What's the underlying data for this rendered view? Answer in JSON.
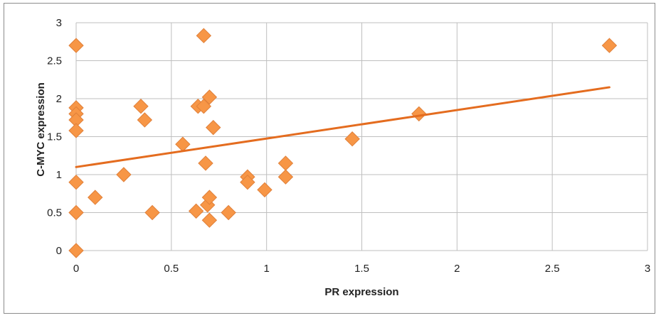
{
  "chart_data": {
    "type": "scatter",
    "xlabel": "PR expression",
    "ylabel": "C-MYC expression",
    "xlim": [
      0,
      3
    ],
    "ylim": [
      0,
      3
    ],
    "x_ticks": [
      "0",
      "0.5",
      "1",
      "1.5",
      "2",
      "2.5",
      "3"
    ],
    "y_ticks": [
      "0",
      "0.5",
      "1",
      "1.5",
      "2",
      "2.5",
      "3"
    ],
    "grid": true,
    "legend": "none",
    "marker": "diamond",
    "colors": {
      "marker": "#f79646",
      "marker_edge": "#e0803a",
      "trendline": "#e46c1f",
      "grid": "#bfbfbf"
    },
    "series": [
      {
        "points": [
          [
            0,
            2.7
          ],
          [
            0,
            1.88
          ],
          [
            0,
            1.8
          ],
          [
            0,
            1.72
          ],
          [
            0,
            1.58
          ],
          [
            0,
            0.9
          ],
          [
            0,
            0.5
          ],
          [
            0,
            0.0
          ],
          [
            0.1,
            0.7
          ],
          [
            0.25,
            1.0
          ],
          [
            0.34,
            1.9
          ],
          [
            0.36,
            1.72
          ],
          [
            0.4,
            0.5
          ],
          [
            0.56,
            1.4
          ],
          [
            0.63,
            0.52
          ],
          [
            0.64,
            1.9
          ],
          [
            0.67,
            2.83
          ],
          [
            0.67,
            1.9
          ],
          [
            0.68,
            1.15
          ],
          [
            0.69,
            0.6
          ],
          [
            0.7,
            0.7
          ],
          [
            0.7,
            0.4
          ],
          [
            0.7,
            2.02
          ],
          [
            0.72,
            1.62
          ],
          [
            0.8,
            0.5
          ],
          [
            0.9,
            0.97
          ],
          [
            0.9,
            0.9
          ],
          [
            0.99,
            0.8
          ],
          [
            1.1,
            1.15
          ],
          [
            1.1,
            0.97
          ],
          [
            1.45,
            1.47
          ],
          [
            1.8,
            1.8
          ],
          [
            2.8,
            2.7
          ]
        ]
      }
    ],
    "trendline": {
      "type": "linear",
      "from": [
        0,
        1.1
      ],
      "to": [
        2.8,
        2.15
      ]
    }
  }
}
